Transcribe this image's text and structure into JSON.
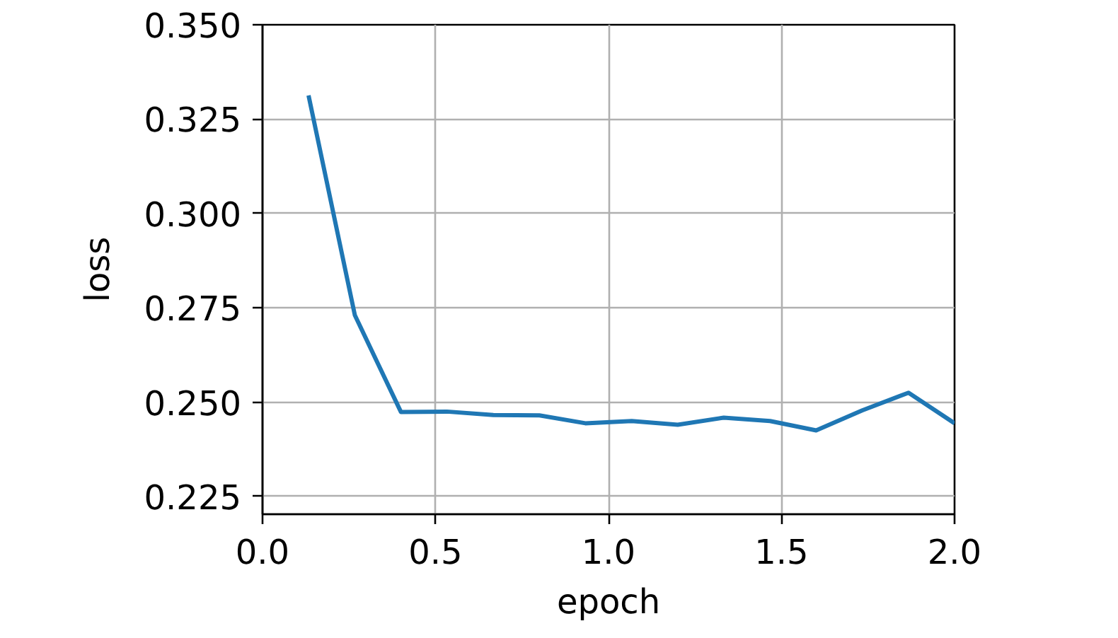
{
  "chart_data": {
    "type": "line",
    "xlabel": "epoch",
    "ylabel": "loss",
    "x": [
      0.133,
      0.267,
      0.4,
      0.533,
      0.667,
      0.8,
      0.933,
      1.067,
      1.2,
      1.333,
      1.467,
      1.6,
      1.733,
      1.867,
      2.0
    ],
    "series": [
      {
        "color": "#1f77b4",
        "values": [
          0.3313,
          0.273,
          0.2474,
          0.2475,
          0.2466,
          0.2465,
          0.2444,
          0.245,
          0.244,
          0.2459,
          0.245,
          0.2425,
          0.2478,
          0.2525,
          0.2444
        ]
      }
    ],
    "xlim": [
      0,
      2
    ],
    "ylim": [
      0.2203,
      0.35
    ],
    "xticks": [
      {
        "value": 0,
        "label": "0.0"
      },
      {
        "value": 0.5,
        "label": "0.5"
      },
      {
        "value": 1,
        "label": "1.0"
      },
      {
        "value": 1.5,
        "label": "1.5"
      },
      {
        "value": 2,
        "label": "2.0"
      }
    ],
    "yticks": [
      0.225,
      {
        "value": 0.25,
        "label": "0.250"
      },
      0.275,
      {
        "value": 0.3,
        "label": "0.300"
      },
      0.325,
      {
        "value": 0.35,
        "label": "0.350"
      }
    ],
    "grid": true,
    "marker": "none",
    "line_style": "solid"
  }
}
